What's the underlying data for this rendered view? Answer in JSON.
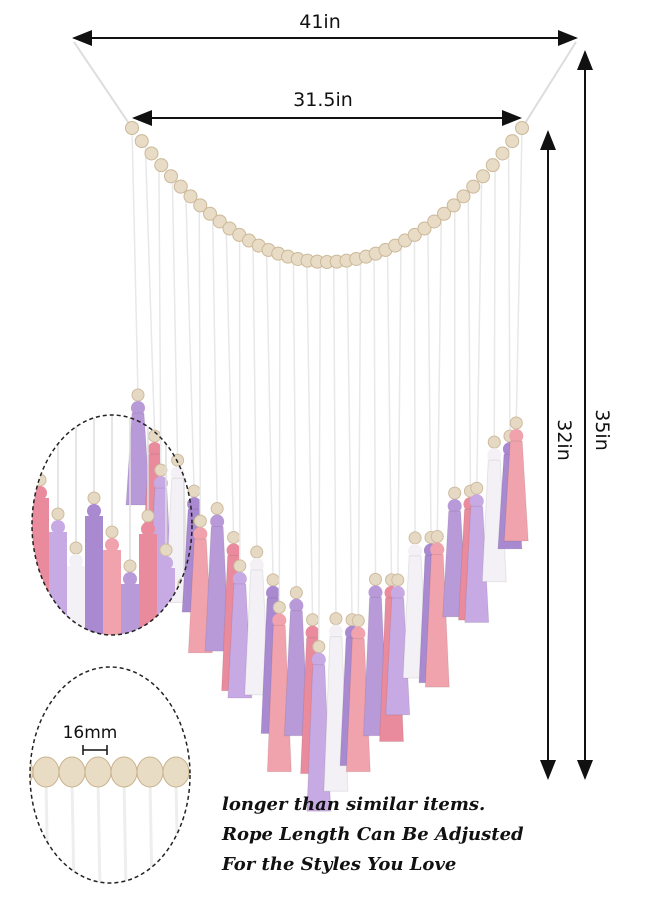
{
  "dimensions": {
    "total_width": "41in",
    "bead_width": "31.5in",
    "bead_height": "32in",
    "total_height": "35in",
    "bead_size": "16mm"
  },
  "caption": [
    "longer than similar items.",
    "Rope Length Can Be Adjusted",
    "For the Styles You Love"
  ]
}
